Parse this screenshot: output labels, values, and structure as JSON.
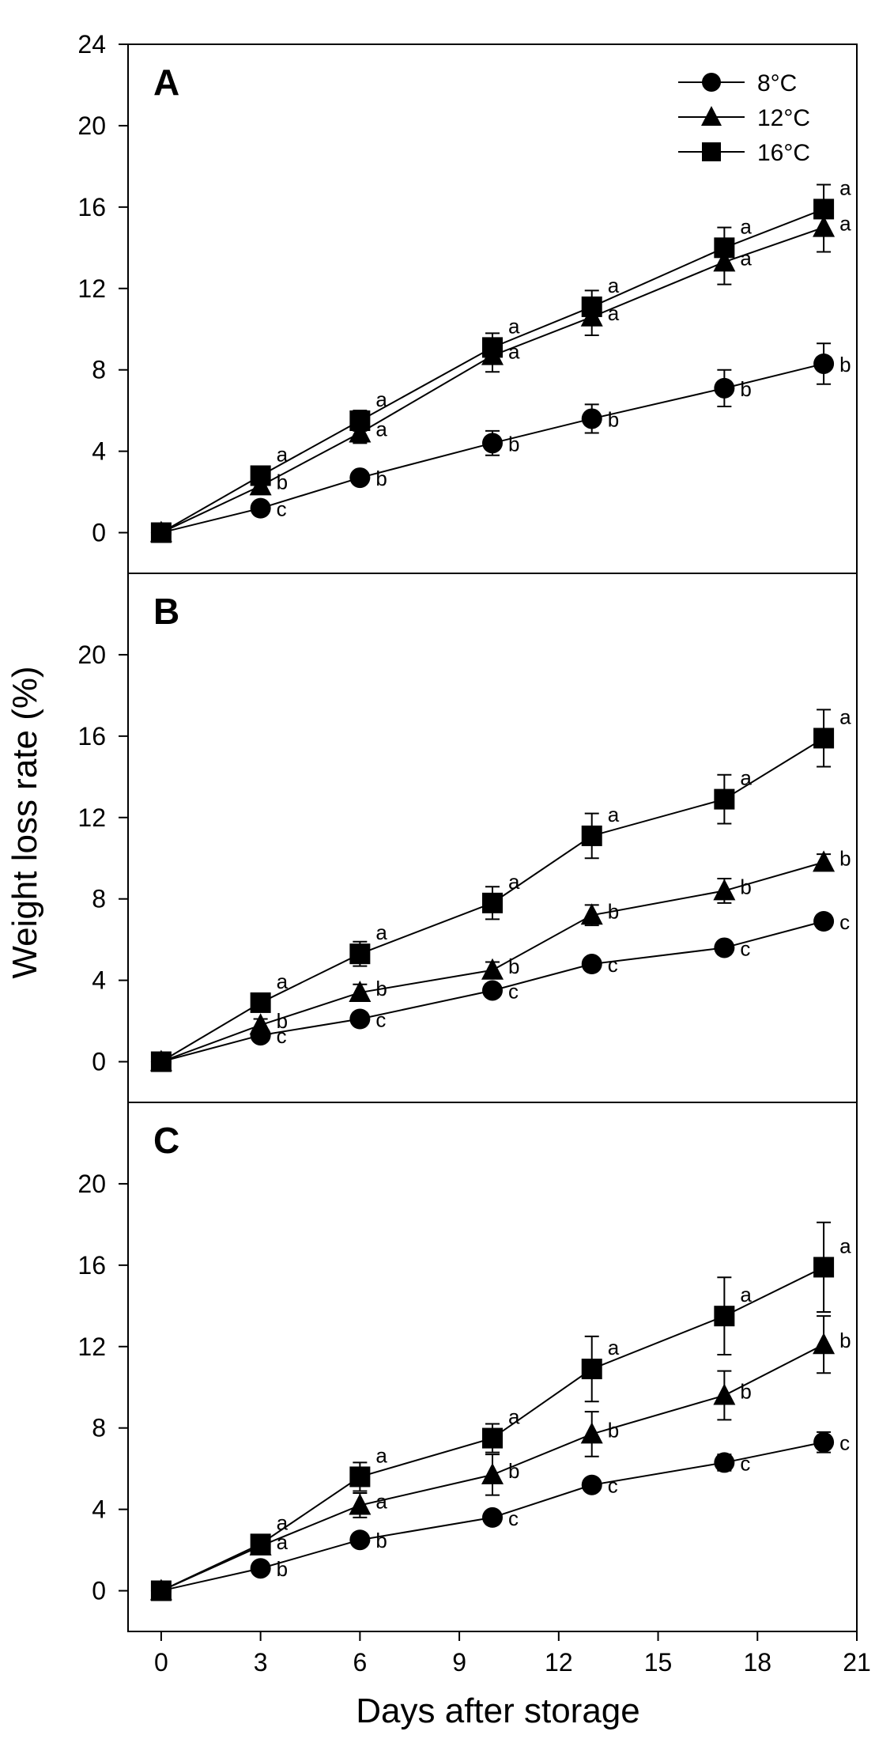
{
  "figure": {
    "ylabel": "Weight loss rate (%)",
    "xlabel": "Days after storage"
  },
  "legend": {
    "placement": "top-right of panel A",
    "entries": [
      "8°C",
      "12°C",
      "16°C"
    ],
    "markers": [
      "circle",
      "triangle",
      "square"
    ]
  },
  "colors": {
    "ink": "#000000",
    "background": "#ffffff"
  },
  "chart_data": [
    {
      "type": "line",
      "panel_label": "A",
      "x": [
        0,
        3,
        6,
        10,
        13,
        17,
        20
      ],
      "xlim": [
        -1,
        21
      ],
      "ylim": [
        -2,
        24
      ],
      "yticks": [
        0,
        4,
        8,
        12,
        16,
        20,
        24
      ],
      "series": [
        {
          "name": "8°C",
          "marker": "circle",
          "values": [
            0,
            1.2,
            2.7,
            4.4,
            5.6,
            7.1,
            8.3
          ],
          "errors": [
            0,
            0.2,
            0.3,
            0.6,
            0.7,
            0.9,
            1.0
          ],
          "letters": [
            "",
            "c",
            "b",
            "b",
            "b",
            "b",
            "b"
          ]
        },
        {
          "name": "12°C",
          "marker": "triangle",
          "values": [
            0,
            2.3,
            4.9,
            8.7,
            10.6,
            13.3,
            15.0
          ],
          "errors": [
            0,
            0.3,
            0.5,
            0.8,
            0.9,
            1.1,
            1.2
          ],
          "letters": [
            "",
            "b",
            "a",
            "a",
            "a",
            "a",
            "a"
          ]
        },
        {
          "name": "16°C",
          "marker": "square",
          "values": [
            0,
            2.8,
            5.5,
            9.1,
            11.1,
            14.0,
            15.9
          ],
          "errors": [
            0,
            0.3,
            0.5,
            0.7,
            0.8,
            1.0,
            1.2
          ],
          "letters": [
            "",
            "a",
            "a",
            "a",
            "a",
            "a",
            "a"
          ]
        }
      ]
    },
    {
      "type": "line",
      "panel_label": "B",
      "x": [
        0,
        3,
        6,
        10,
        13,
        17,
        20
      ],
      "xlim": [
        -1,
        21
      ],
      "ylim": [
        -2,
        24
      ],
      "yticks": [
        0,
        4,
        8,
        12,
        16,
        20
      ],
      "series": [
        {
          "name": "8°C",
          "marker": "circle",
          "values": [
            0,
            1.3,
            2.1,
            3.5,
            4.8,
            5.6,
            6.9
          ],
          "errors": [
            0,
            0.2,
            0.3,
            0.3,
            0.3,
            0.3,
            0.3
          ],
          "letters": [
            "",
            "c",
            "c",
            "c",
            "c",
            "c",
            "c"
          ]
        },
        {
          "name": "12°C",
          "marker": "triangle",
          "values": [
            0,
            1.8,
            3.4,
            4.5,
            7.2,
            8.4,
            9.8
          ],
          "errors": [
            0,
            0.3,
            0.4,
            0.4,
            0.5,
            0.6,
            0.4
          ],
          "letters": [
            "",
            "b",
            "b",
            "b",
            "b",
            "b",
            "b"
          ]
        },
        {
          "name": "16°C",
          "marker": "square",
          "values": [
            0,
            2.9,
            5.3,
            7.8,
            11.1,
            12.9,
            15.9
          ],
          "errors": [
            0,
            0.3,
            0.6,
            0.8,
            1.1,
            1.2,
            1.4
          ],
          "letters": [
            "",
            "a",
            "a",
            "a",
            "a",
            "a",
            "a"
          ]
        }
      ]
    },
    {
      "type": "line",
      "panel_label": "C",
      "x": [
        0,
        3,
        6,
        10,
        13,
        17,
        20
      ],
      "xlim": [
        -1,
        21
      ],
      "ylim": [
        -2,
        24
      ],
      "yticks": [
        0,
        4,
        8,
        12,
        16,
        20
      ],
      "xticks": [
        0,
        3,
        6,
        9,
        12,
        15,
        18,
        21
      ],
      "series": [
        {
          "name": "8°C",
          "marker": "circle",
          "values": [
            0,
            1.1,
            2.5,
            3.6,
            5.2,
            6.3,
            7.3
          ],
          "errors": [
            0,
            0.2,
            0.3,
            0.3,
            0.3,
            0.4,
            0.5
          ],
          "letters": [
            "",
            "b",
            "b",
            "c",
            "c",
            "c",
            "c"
          ]
        },
        {
          "name": "12°C",
          "marker": "triangle",
          "values": [
            0,
            2.2,
            4.2,
            5.7,
            7.7,
            9.6,
            12.1
          ],
          "errors": [
            0,
            0.3,
            0.6,
            1.0,
            1.1,
            1.2,
            1.4
          ],
          "letters": [
            "",
            "a",
            "a",
            "b",
            "b",
            "b",
            "b"
          ]
        },
        {
          "name": "16°C",
          "marker": "square",
          "values": [
            0,
            2.3,
            5.6,
            7.5,
            10.9,
            13.5,
            15.9
          ],
          "errors": [
            0,
            0.3,
            0.7,
            0.7,
            1.6,
            1.9,
            2.2
          ],
          "letters": [
            "",
            "a",
            "a",
            "a",
            "a",
            "a",
            "a"
          ]
        }
      ]
    }
  ]
}
